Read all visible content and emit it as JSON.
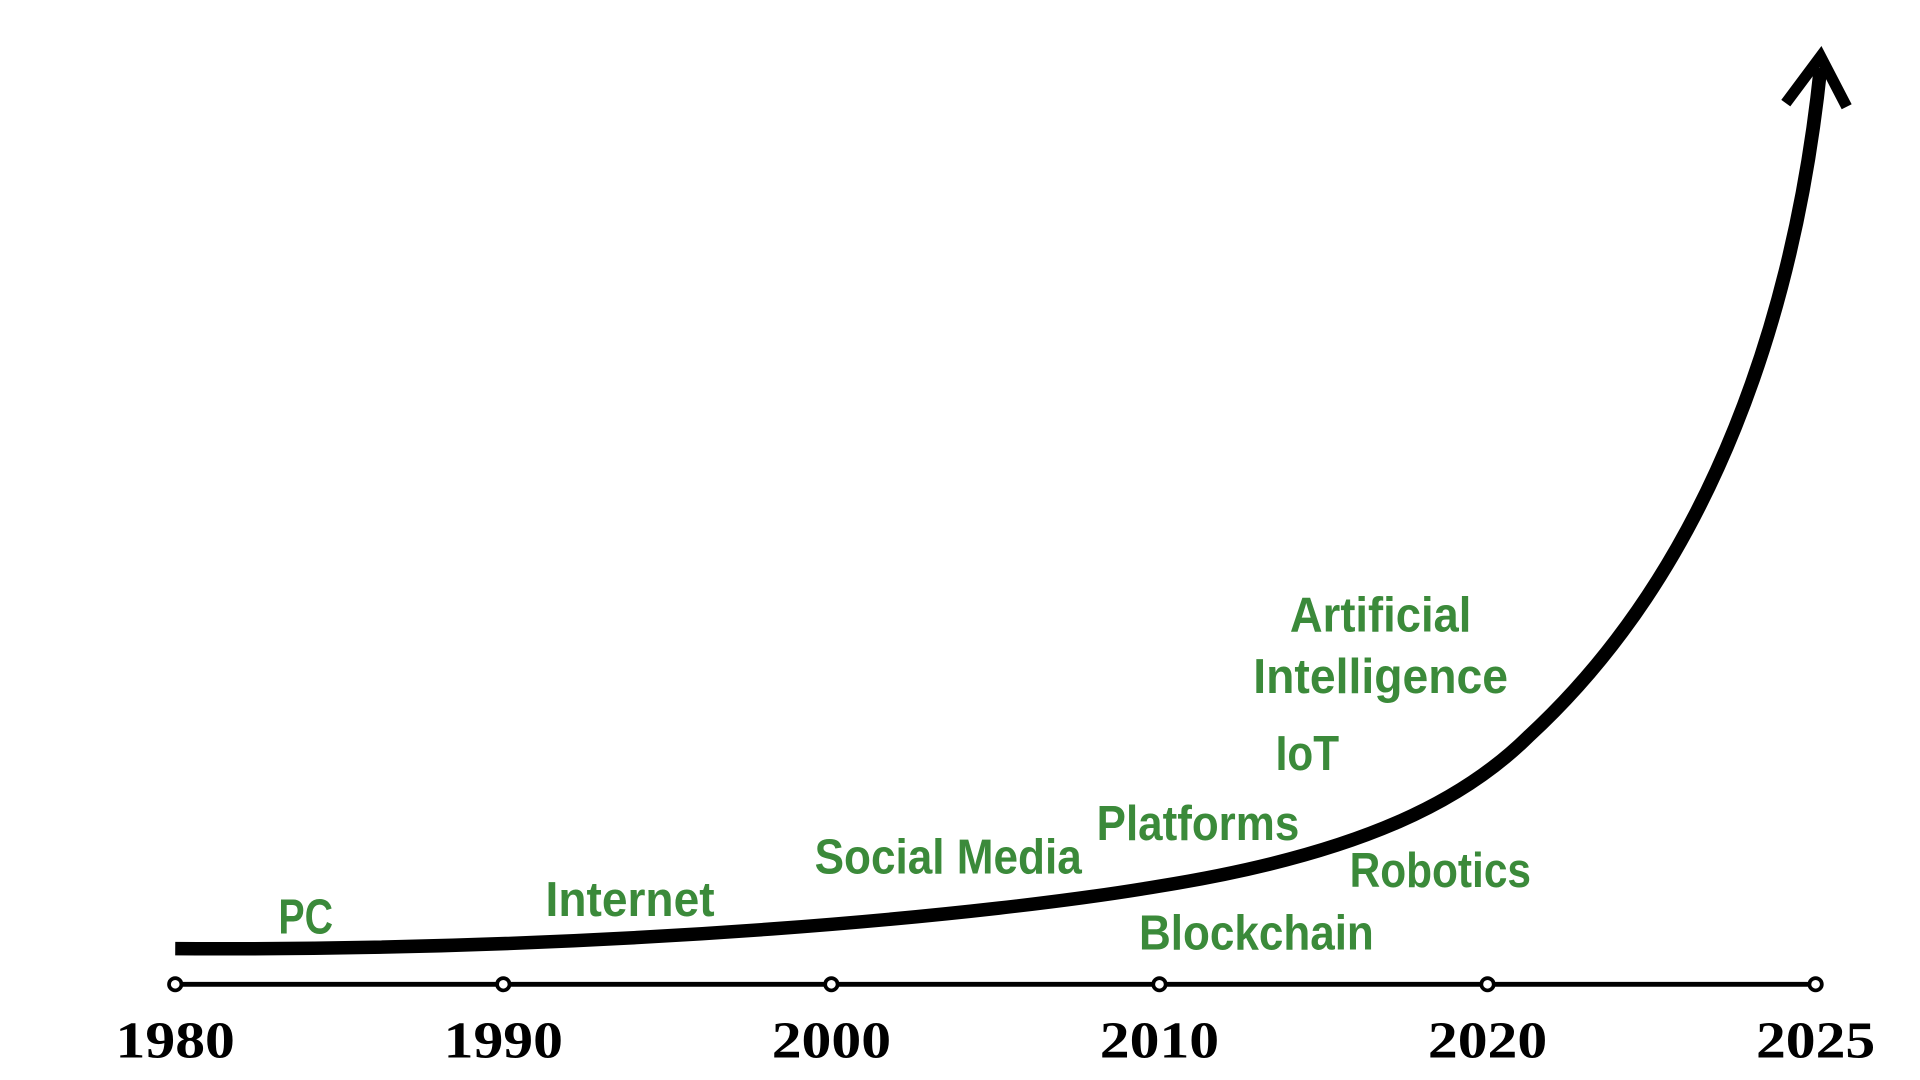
{
  "timeline": {
    "years": [
      "1980",
      "1990",
      "2000",
      "2010",
      "2020",
      "2025"
    ]
  },
  "technologies": [
    "PC",
    "Internet",
    "Social Media",
    "Platforms",
    "IoT",
    "Artificial",
    "Intelligence",
    "Robotics",
    "Blockchain"
  ]
}
